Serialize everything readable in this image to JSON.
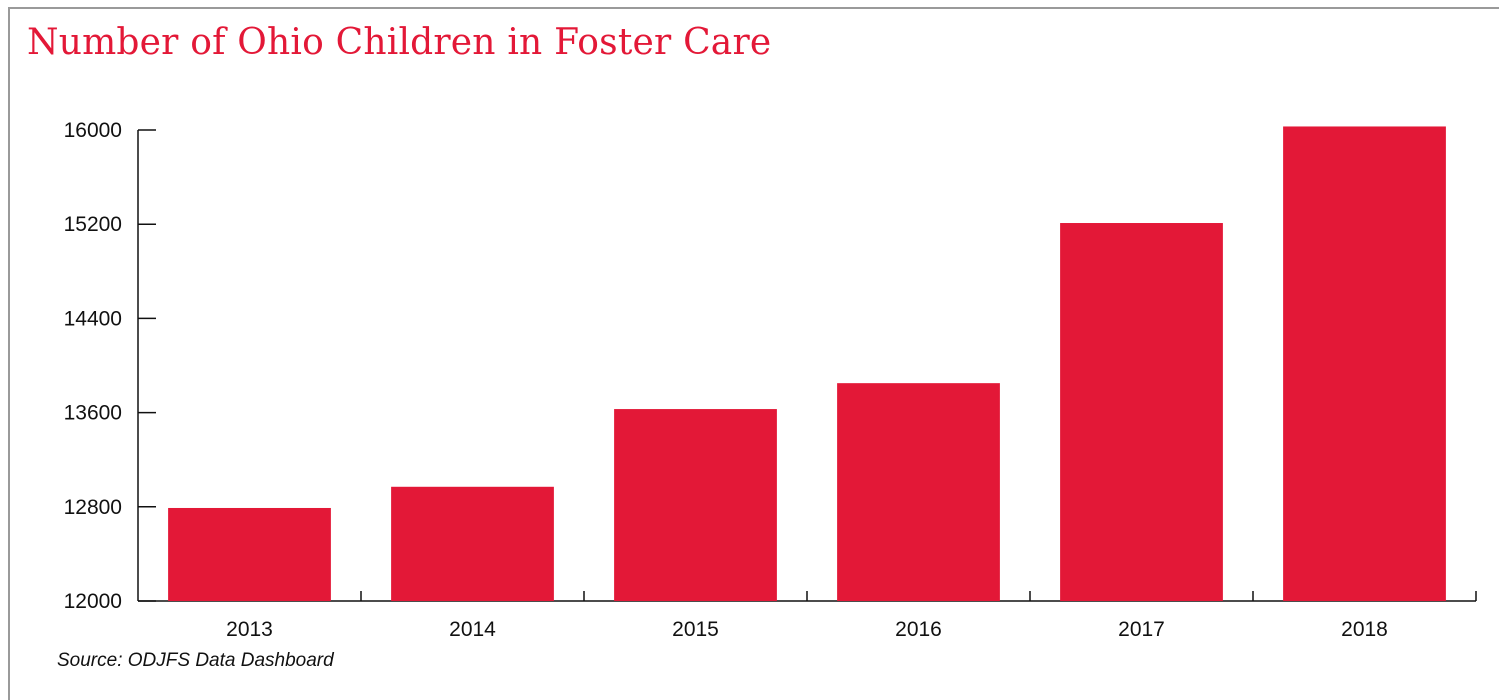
{
  "chart_data": {
    "type": "bar",
    "title": "Number of Ohio Children in Foster Care",
    "categories": [
      "2013",
      "2014",
      "2015",
      "2016",
      "2017",
      "2018"
    ],
    "values": [
      12790,
      12970,
      13630,
      13850,
      15210,
      16030
    ],
    "ylim": [
      12000,
      16000
    ],
    "yticks": [
      12000,
      12800,
      13600,
      14400,
      15200,
      16000
    ],
    "xlabel": "",
    "ylabel": "",
    "grid": false,
    "legend": "none",
    "bar_color": "#e31837",
    "axis_color": "#111111"
  },
  "source": "Source: ODJFS Data Dashboard"
}
